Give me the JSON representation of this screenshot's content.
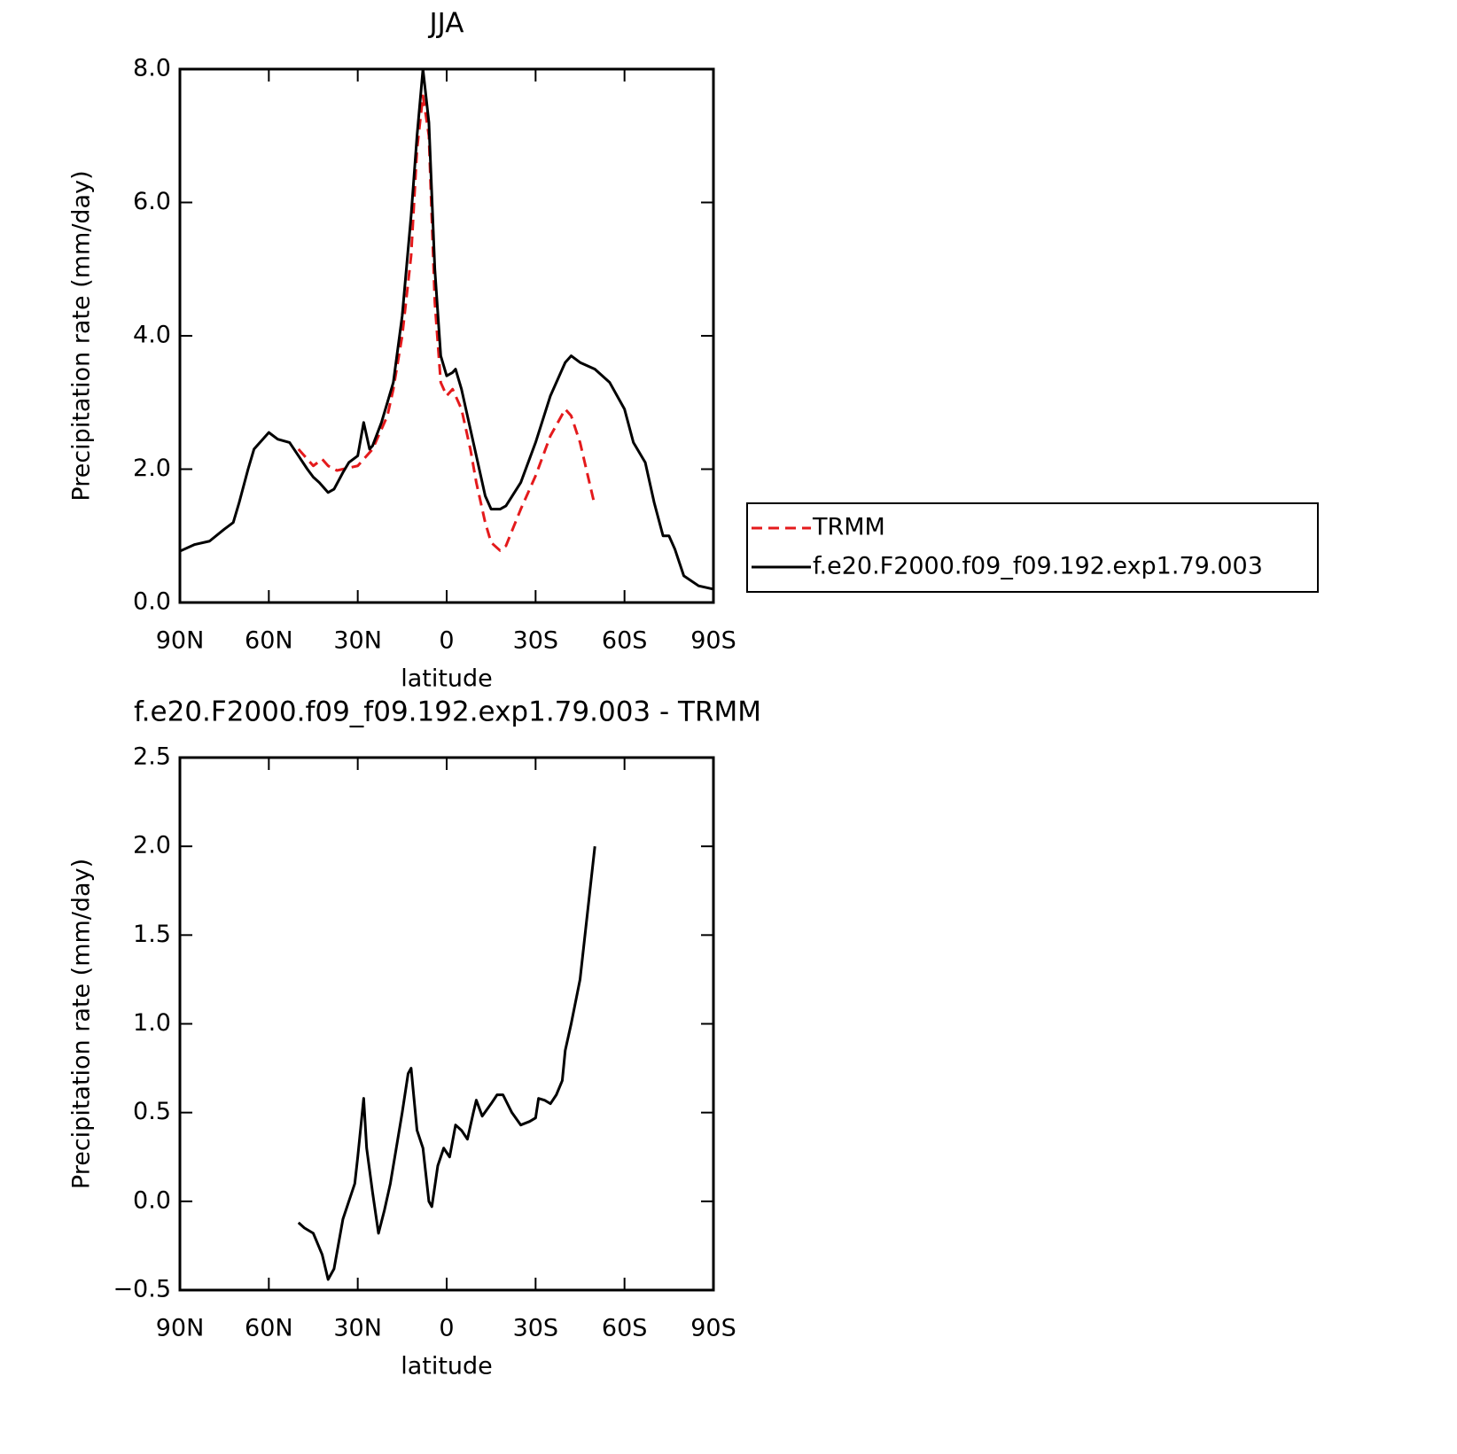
{
  "chart_data": [
    {
      "type": "line",
      "title": "JJA",
      "ylabel": "Precipitation rate (mm/day)",
      "xlabel": "latitude",
      "xlim": [
        90,
        -90
      ],
      "xticks": [
        {
          "value": 90,
          "label": "90N"
        },
        {
          "value": 60,
          "label": "60N"
        },
        {
          "value": 30,
          "label": "30N"
        },
        0,
        {
          "value": -30,
          "label": "30S"
        },
        {
          "value": -60,
          "label": "60S"
        },
        {
          "value": -90,
          "label": "90S"
        }
      ],
      "ylim": [
        0,
        8
      ],
      "yticks": [
        {
          "value": 0,
          "label": "0.0"
        },
        {
          "value": 2,
          "label": "2.0"
        },
        {
          "value": 4,
          "label": "4.0"
        },
        {
          "value": 6,
          "label": "6.0"
        },
        {
          "value": 8,
          "label": "8.0"
        }
      ],
      "legend": "right",
      "series": [
        {
          "name": "TRMM",
          "color": "#e41a1c",
          "dashed": true,
          "x": [
            50,
            45,
            42,
            40,
            37,
            35,
            30,
            28,
            25,
            22,
            20,
            18,
            15,
            12,
            10,
            8,
            6,
            4,
            2,
            0,
            -2,
            -5,
            -8,
            -10,
            -13,
            -15,
            -18,
            -20,
            -25,
            -30,
            -35,
            -40,
            -42,
            -45,
            -50
          ],
          "values": [
            2.3,
            2.05,
            2.15,
            2.05,
            1.98,
            2.0,
            2.05,
            2.15,
            2.3,
            2.6,
            2.8,
            3.2,
            4.0,
            5.2,
            6.8,
            7.6,
            7.0,
            4.5,
            3.3,
            3.1,
            3.2,
            2.9,
            2.3,
            1.8,
            1.2,
            0.9,
            0.78,
            0.85,
            1.4,
            1.9,
            2.5,
            2.9,
            2.8,
            2.4,
            1.45
          ]
        },
        {
          "name": "f.e20.F2000.f09_f09.192.exp1.79.003",
          "color": "#000000",
          "dashed": false,
          "x": [
            90,
            85,
            80,
            75,
            72,
            70,
            67,
            65,
            62,
            60,
            57,
            53,
            50,
            47,
            45,
            43,
            40,
            38,
            35,
            33,
            30,
            28,
            26,
            25,
            22,
            20,
            18,
            15,
            12,
            10,
            8,
            6,
            4,
            2,
            0,
            -2,
            -3,
            -5,
            -8,
            -10,
            -13,
            -15,
            -18,
            -20,
            -25,
            -30,
            -35,
            -40,
            -42,
            -45,
            -50,
            -55,
            -60,
            -63,
            -67,
            -70,
            -73,
            -75,
            -77,
            -80,
            -85,
            -90
          ],
          "values": [
            0.77,
            0.87,
            0.92,
            1.1,
            1.2,
            1.5,
            2.0,
            2.3,
            2.45,
            2.55,
            2.45,
            2.4,
            2.2,
            2.0,
            1.88,
            1.8,
            1.65,
            1.7,
            1.95,
            2.1,
            2.2,
            2.7,
            2.3,
            2.35,
            2.7,
            3.0,
            3.3,
            4.3,
            5.8,
            7.0,
            8.0,
            7.2,
            5.0,
            3.7,
            3.4,
            3.45,
            3.5,
            3.2,
            2.6,
            2.2,
            1.6,
            1.4,
            1.4,
            1.45,
            1.8,
            2.4,
            3.1,
            3.6,
            3.7,
            3.6,
            3.5,
            3.3,
            2.9,
            2.4,
            2.1,
            1.5,
            1.0,
            1.0,
            0.8,
            0.4,
            0.25,
            0.2
          ]
        }
      ]
    },
    {
      "type": "line",
      "title": "f.e20.F2000.f09_f09.192.exp1.79.003 - TRMM",
      "ylabel": "Precipitation rate (mm/day)",
      "xlabel": "latitude",
      "xlim": [
        90,
        -90
      ],
      "xticks": [
        {
          "value": 90,
          "label": "90N"
        },
        {
          "value": 60,
          "label": "60N"
        },
        {
          "value": 30,
          "label": "30N"
        },
        0,
        {
          "value": -30,
          "label": "30S"
        },
        {
          "value": -60,
          "label": "60S"
        },
        {
          "value": -90,
          "label": "90S"
        }
      ],
      "ylim": [
        -0.5,
        2.5
      ],
      "yticks": [
        {
          "value": -0.5,
          "label": "−0.5"
        },
        {
          "value": 0,
          "label": "0.0"
        },
        0.5,
        {
          "value": 1,
          "label": "1.0"
        },
        1.5,
        {
          "value": 2,
          "label": "2.0"
        },
        2.5
      ],
      "series": [
        {
          "color": "#000000",
          "dashed": false,
          "x": [
            50,
            48,
            45,
            42,
            40,
            38,
            35,
            33,
            31,
            30,
            28,
            27,
            25,
            23,
            21,
            19,
            17,
            15,
            13,
            12,
            10,
            8,
            6,
            5,
            3,
            1,
            -1,
            -3,
            -5,
            -7,
            -9,
            -10,
            -12,
            -15,
            -17,
            -19,
            -22,
            -25,
            -28,
            -30,
            -31,
            -33,
            -35,
            -37,
            -39,
            -40,
            -42,
            -45,
            -47,
            -50
          ],
          "values": [
            -0.12,
            -0.15,
            -0.18,
            -0.3,
            -0.44,
            -0.38,
            -0.1,
            0.0,
            0.1,
            0.25,
            0.58,
            0.3,
            0.05,
            -0.18,
            -0.05,
            0.1,
            0.3,
            0.5,
            0.72,
            0.75,
            0.4,
            0.3,
            0.0,
            -0.03,
            0.2,
            0.3,
            0.25,
            0.43,
            0.4,
            0.35,
            0.5,
            0.57,
            0.48,
            0.55,
            0.6,
            0.6,
            0.5,
            0.43,
            0.45,
            0.47,
            0.58,
            0.57,
            0.55,
            0.6,
            0.68,
            0.85,
            1.0,
            1.25,
            1.55,
            2.0
          ]
        }
      ]
    }
  ]
}
